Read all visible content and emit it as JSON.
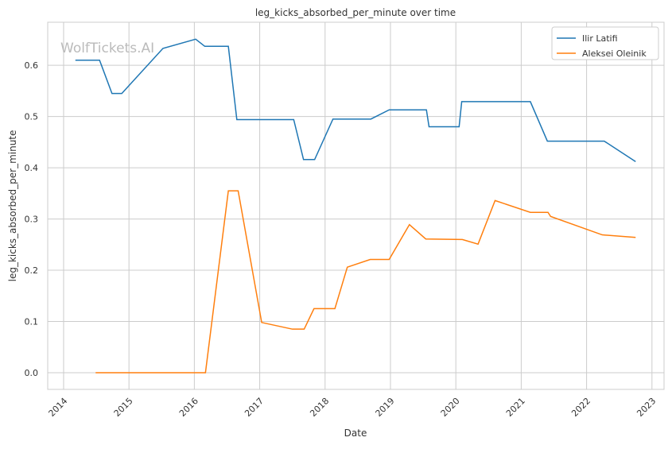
{
  "chart_data": {
    "type": "line",
    "title": "leg_kicks_absorbed_per_minute over time",
    "xlabel": "Date",
    "ylabel": "leg_kicks_absorbed_per_minute",
    "watermark": "WolfTickets.AI",
    "xlim": [
      2013.757,
      2023.185
    ],
    "ylim": [
      -0.0326,
      0.684
    ],
    "x_ticks": [
      2014,
      2015,
      2016,
      2017,
      2018,
      2019,
      2020,
      2021,
      2022,
      2023
    ],
    "x_tick_labels": [
      "2014",
      "2015",
      "2016",
      "2017",
      "2018",
      "2019",
      "2020",
      "2021",
      "2022",
      "2023"
    ],
    "y_ticks": [
      0,
      0.1,
      0.2,
      0.3,
      0.4,
      0.5,
      0.6
    ],
    "y_tick_labels": [
      "0.0",
      "0.1",
      "0.2",
      "0.3",
      "0.4",
      "0.5",
      "0.6"
    ],
    "grid": true,
    "legend_position": "top-right",
    "series": [
      {
        "name": "Ilir Latifi",
        "color": "#1f77b4",
        "x": [
          2014.18,
          2014.55,
          2014.74,
          2014.89,
          2015.52,
          2016.02,
          2016.16,
          2016.52,
          2016.65,
          2017.52,
          2017.67,
          2017.84,
          2018.12,
          2018.7,
          2018.98,
          2019.55,
          2019.59,
          2020.05,
          2020.09,
          2021.14,
          2021.4,
          2022.27,
          2022.75
        ],
        "y": [
          0.61,
          0.61,
          0.545,
          0.545,
          0.633,
          0.651,
          0.637,
          0.637,
          0.494,
          0.494,
          0.416,
          0.416,
          0.495,
          0.495,
          0.513,
          0.513,
          0.48,
          0.48,
          0.529,
          0.529,
          0.452,
          0.452,
          0.412
        ]
      },
      {
        "name": "Aleksei Oleinik",
        "color": "#ff7f0e",
        "x": [
          2014.49,
          2016.17,
          2016.52,
          2016.67,
          2017.03,
          2017.5,
          2017.68,
          2017.83,
          2018.15,
          2018.34,
          2018.69,
          2018.98,
          2019.29,
          2019.54,
          2020.1,
          2020.34,
          2020.6,
          2021.14,
          2021.41,
          2021.45,
          2022.24,
          2022.75
        ],
        "y": [
          0,
          0,
          0.355,
          0.355,
          0.098,
          0.085,
          0.085,
          0.125,
          0.125,
          0.206,
          0.221,
          0.221,
          0.289,
          0.261,
          0.26,
          0.251,
          0.336,
          0.313,
          0.313,
          0.305,
          0.269,
          0.264
        ]
      }
    ]
  }
}
